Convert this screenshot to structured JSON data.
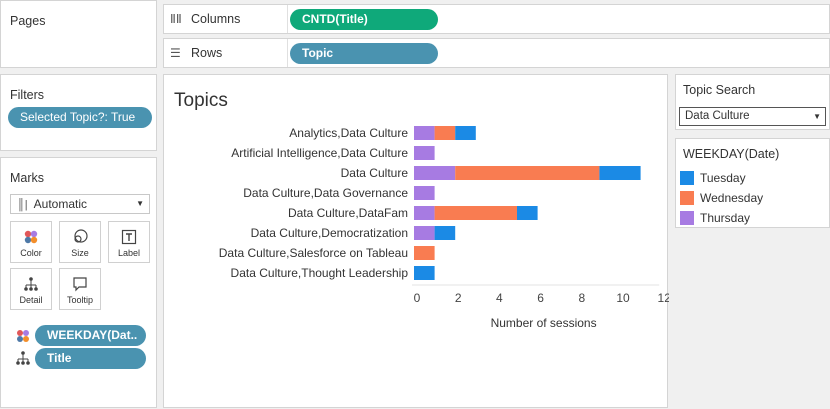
{
  "pages": {
    "title": "Pages"
  },
  "columns": {
    "label": "Columns",
    "pill": "CNTD(Title)"
  },
  "rows": {
    "label": "Rows",
    "pill": "Topic"
  },
  "filters": {
    "title": "Filters",
    "pill": "Selected Topic?: True"
  },
  "marks": {
    "title": "Marks",
    "type_select": "Automatic",
    "buttons": {
      "color": "Color",
      "size": "Size",
      "label": "Label",
      "detail": "Detail",
      "tooltip": "Tooltip"
    },
    "fields": [
      "WEEKDAY(Dat..",
      "Title"
    ]
  },
  "sheet": {
    "title": "Topics"
  },
  "topic_search": {
    "title": "Topic Search",
    "value": "Data Culture"
  },
  "legend": {
    "title": "WEEKDAY(Date)",
    "items": [
      {
        "label": "Tuesday",
        "color": "#1b8ae5"
      },
      {
        "label": "Wednesday",
        "color": "#f97c51"
      },
      {
        "label": "Thursday",
        "color": "#a77be2"
      }
    ]
  },
  "chart_data": {
    "type": "bar",
    "orientation": "horizontal",
    "stacked": true,
    "title": "Topics",
    "xlabel": "Number of sessions",
    "ylabel": "",
    "xlim": [
      0,
      12
    ],
    "xticks": [
      0,
      2,
      4,
      6,
      8,
      10,
      12
    ],
    "categories": [
      "Analytics,Data Culture",
      "Artificial Intelligence,Data Culture",
      "Data Culture",
      "Data Culture,Data Governance",
      "Data Culture,DataFam",
      "Data Culture,Democratization",
      "Data Culture,Salesforce on Tableau",
      "Data Culture,Thought Leadership"
    ],
    "series": [
      {
        "name": "Thursday",
        "color": "#a77be2",
        "values": [
          1,
          1,
          2,
          1,
          1,
          1,
          0,
          0
        ]
      },
      {
        "name": "Wednesday",
        "color": "#f97c51",
        "values": [
          1,
          0,
          7,
          0,
          4,
          0,
          1,
          0
        ]
      },
      {
        "name": "Tuesday",
        "color": "#1b8ae5",
        "values": [
          1,
          0,
          2,
          0,
          1,
          1,
          0,
          1
        ]
      }
    ]
  }
}
